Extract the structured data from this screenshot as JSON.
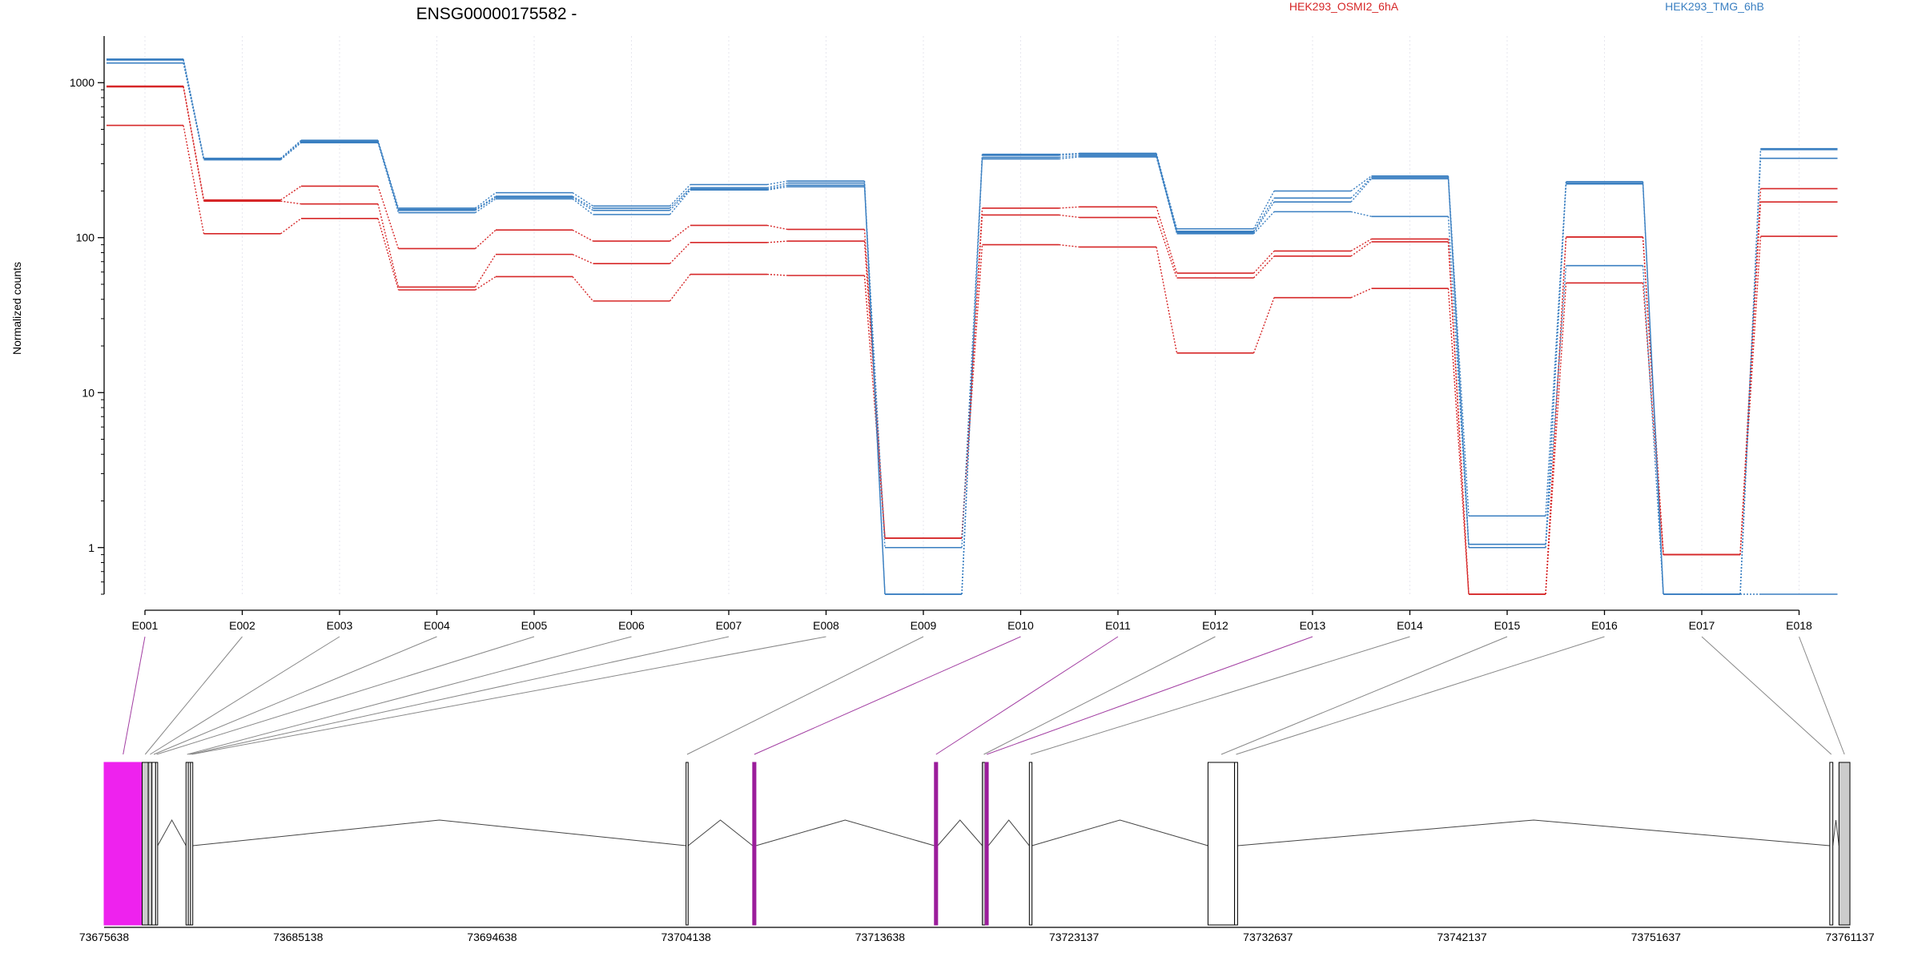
{
  "chart_data": {
    "type": "line",
    "title": "ENSG00000175582 -",
    "xlabel": "",
    "ylabel": "Normalized counts",
    "y_scale": "log",
    "ylim": [
      0.5,
      2000
    ],
    "grid": "vertical dotted",
    "legend_placement": "top-right",
    "y_ticks": [
      1,
      10,
      100,
      1000
    ],
    "y_tick_labels": [
      "1",
      "10",
      "100",
      "1000"
    ],
    "categories": [
      "E001",
      "E002",
      "E003",
      "E004",
      "E005",
      "E006",
      "E007",
      "E008",
      "E009",
      "E010",
      "E011",
      "E012",
      "E013",
      "E014",
      "E015",
      "E016",
      "E017",
      "E018"
    ],
    "series": [
      {
        "name": "HEK293_OSMI2_6hA",
        "group": "HEK293_OSMI2_6hA",
        "color": "#d62728",
        "values": [
          950,
          175,
          215,
          85,
          112,
          95,
          120,
          113,
          1.15,
          155,
          158,
          59,
          82,
          98,
          0.5,
          101,
          0.9,
          207
        ]
      },
      {
        "group": "HEK293_OSMI2_6hA",
        "color": "#d62728",
        "values": [
          940,
          172,
          165,
          48,
          78,
          68,
          93,
          95,
          1.15,
          140,
          135,
          55,
          76,
          94,
          0.5,
          101,
          0.9,
          170
        ]
      },
      {
        "group": "HEK293_OSMI2_6hA",
        "color": "#d62728",
        "values": [
          530,
          106,
          133,
          46,
          56,
          39,
          58,
          57,
          1.15,
          90,
          87,
          18,
          41,
          47,
          0.5,
          51,
          0.9,
          102
        ]
      },
      {
        "name": "HEK293_TMG_6hB",
        "group": "HEK293_TMG_6hB",
        "color": "#3a7fc1",
        "values": [
          1420,
          325,
          425,
          155,
          195,
          160,
          220,
          232,
          0.5,
          345,
          350,
          114,
          200,
          250,
          1.6,
          230,
          0.5,
          375
        ]
      },
      {
        "group": "HEK293_TMG_6hB",
        "color": "#3a7fc1",
        "values": [
          1410,
          322,
          420,
          152,
          185,
          155,
          210,
          225,
          0.5,
          340,
          345,
          110,
          180,
          245,
          1.05,
          222,
          0.5,
          370
        ]
      },
      {
        "group": "HEK293_TMG_6hB",
        "color": "#3a7fc1",
        "values": [
          1340,
          318,
          410,
          145,
          178,
          141,
          203,
          213,
          1.0,
          322,
          332,
          106,
          147,
          137,
          1.0,
          66,
          0.5,
          325
        ]
      },
      {
        "group": "HEK293_TMG_6hB",
        "color": "#3a7fc1",
        "values": [
          1400,
          320,
          415,
          150,
          182,
          150,
          206,
          218,
          0.5,
          330,
          338,
          108,
          170,
          240,
          1.0,
          225,
          0.5,
          0.5
        ]
      }
    ],
    "gene_model": {
      "x_ticks": [
        73675638,
        73685138,
        73694638,
        73704138,
        73713638,
        73723137,
        73732637,
        73742137,
        73751637,
        73761137
      ],
      "x_tick_labels": [
        "73675638",
        "73685138",
        "73694638",
        "73704138",
        "73713638",
        "73723137",
        "73732637",
        "73742137",
        "73751637",
        "73761137"
      ],
      "exons": [
        {
          "exon": "E001",
          "start": 73675638,
          "end": 73677500,
          "fill": "#ee22ee",
          "highlight": true
        },
        {
          "exon": "E002",
          "start": 73677500,
          "end": 73677800,
          "fill": "#cccccc",
          "highlight": false
        },
        {
          "exon": "E003",
          "start": 73677800,
          "end": 73677980,
          "fill": "#cccccc",
          "highlight": false
        },
        {
          "exon": "E004",
          "start": 73677980,
          "end": 73678160,
          "fill": "#ffffff",
          "highlight": false
        },
        {
          "exon": "E005",
          "start": 73678160,
          "end": 73678260,
          "fill": "#ffffff",
          "highlight": false
        },
        {
          "exon": "E006",
          "start": 73679650,
          "end": 73679760,
          "fill": "#ffffff",
          "highlight": false
        },
        {
          "exon": "E007",
          "start": 73679760,
          "end": 73679870,
          "fill": "#ffffff",
          "highlight": false
        },
        {
          "exon": "E008",
          "start": 73679870,
          "end": 73679980,
          "fill": "#ffffff",
          "highlight": false
        },
        {
          "exon": "E009",
          "start": 73704138,
          "end": 73704240,
          "fill": "#ffffff",
          "highlight": false
        },
        {
          "exon": "E010",
          "start": 73707400,
          "end": 73707560,
          "fill": "#9b1d9b",
          "highlight": true
        },
        {
          "exon": "E011",
          "start": 73716300,
          "end": 73716460,
          "fill": "#9b1d9b",
          "highlight": true
        },
        {
          "exon": "E012",
          "start": 73718650,
          "end": 73718790,
          "fill": "#cccccc",
          "highlight": false
        },
        {
          "exon": "E013",
          "start": 73718790,
          "end": 73718940,
          "fill": "#9b1d9b",
          "highlight": true
        },
        {
          "exon": "E014",
          "start": 73720950,
          "end": 73721080,
          "fill": "#ffffff",
          "highlight": false
        },
        {
          "exon": "E015",
          "start": 73729700,
          "end": 73731000,
          "fill": "#ffffff",
          "highlight": false
        },
        {
          "exon": "E016",
          "start": 73731000,
          "end": 73731150,
          "fill": "#ffffff",
          "highlight": false
        },
        {
          "exon": "E017",
          "start": 73760150,
          "end": 73760300,
          "fill": "#ffffff",
          "highlight": false
        },
        {
          "exon": "E018",
          "start": 73760600,
          "end": 73761137,
          "fill": "#cccccc",
          "highlight": false
        }
      ],
      "introns": [
        [
          73677500,
          73678160
        ],
        [
          73678260,
          73679650
        ],
        [
          73679980,
          73704138
        ],
        [
          73704240,
          73707400
        ],
        [
          73707560,
          73716300
        ],
        [
          73716460,
          73718650
        ],
        [
          73718940,
          73720950
        ],
        [
          73721080,
          73729700
        ],
        [
          73731150,
          73760150
        ],
        [
          73760300,
          73760600
        ]
      ]
    }
  }
}
